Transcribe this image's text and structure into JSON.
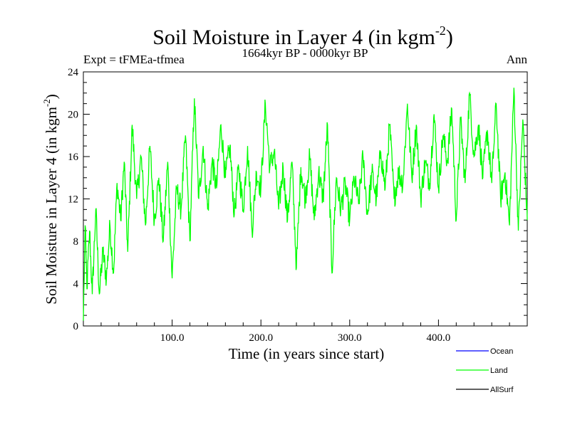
{
  "chart_data": {
    "type": "line",
    "title": "Soil Moisture in Layer 4 (in kgm",
    "title_sup": "-2",
    "title_close": ")",
    "subtitle": "1664kyr BP - 0000kyr BP",
    "expt_label": "Expt = tFMEa-tfmea",
    "season_label": "Ann",
    "xlabel": "Time (in years since start)",
    "ylabel": "Soil Moisture in Layer 4 (in kgm",
    "ylabel_sup": "-2",
    "ylabel_close": ")",
    "xlim": [
      0,
      500
    ],
    "ylim": [
      0,
      24
    ],
    "xticks": [
      100,
      200,
      300,
      400
    ],
    "xtick_labels": [
      "100.0",
      "200.0",
      "300.0",
      "400.0"
    ],
    "yticks": [
      0,
      4,
      8,
      12,
      16,
      20,
      24
    ],
    "ytick_labels": [
      "0",
      "4",
      "8",
      "12",
      "16",
      "20",
      "24"
    ],
    "legend": [
      {
        "name": "Ocean",
        "color": "#0000ff"
      },
      {
        "name": "Land",
        "color": "#00ff00"
      },
      {
        "name": "AllSurf",
        "color": "#000000"
      }
    ],
    "series": [
      {
        "name": "Land",
        "color": "#00ff00",
        "x": [
          0,
          2,
          4,
          7,
          10,
          14,
          18,
          22,
          26,
          30,
          34,
          38,
          42,
          46,
          50,
          55,
          60,
          65,
          70,
          75,
          80,
          85,
          90,
          95,
          100,
          105,
          110,
          115,
          120,
          125,
          130,
          135,
          140,
          145,
          150,
          155,
          160,
          165,
          170,
          175,
          180,
          185,
          190,
          195,
          200,
          205,
          210,
          215,
          220,
          225,
          230,
          235,
          240,
          245,
          250,
          255,
          260,
          265,
          270,
          275,
          280,
          285,
          290,
          295,
          300,
          305,
          310,
          315,
          320,
          325,
          330,
          335,
          340,
          345,
          350,
          355,
          360,
          365,
          370,
          375,
          380,
          385,
          390,
          395,
          400,
          405,
          410,
          415,
          420,
          425,
          430,
          435,
          440,
          445,
          450,
          455,
          460,
          465,
          470,
          475,
          480,
          485,
          490,
          495,
          500
        ],
        "values": [
          0.5,
          9.5,
          3.5,
          9.0,
          3.0,
          11.0,
          3.0,
          7.0,
          4.5,
          9.5,
          5.0,
          13.5,
          10.0,
          15.5,
          7.0,
          19.0,
          12.0,
          16.0,
          9.5,
          17.0,
          10.0,
          14.0,
          8.0,
          15.5,
          4.5,
          13.0,
          11.0,
          18.0,
          8.0,
          21.5,
          12.0,
          17.0,
          11.0,
          15.5,
          13.0,
          19.0,
          14.0,
          17.0,
          10.5,
          15.0,
          11.0,
          17.0,
          9.0,
          14.5,
          13.0,
          21.0,
          15.0,
          16.5,
          11.0,
          15.0,
          10.0,
          15.5,
          5.5,
          15.0,
          12.0,
          16.0,
          10.0,
          14.5,
          12.0,
          19.0,
          5.0,
          14.0,
          11.0,
          13.5,
          10.0,
          14.0,
          11.5,
          16.0,
          10.5,
          14.5,
          12.0,
          16.5,
          13.0,
          19.0,
          12.0,
          14.5,
          13.5,
          21.0,
          14.0,
          19.0,
          12.0,
          15.5,
          13.5,
          20.0,
          13.0,
          18.0,
          15.5,
          20.5,
          10.0,
          19.5,
          13.5,
          22.0,
          16.0,
          19.0,
          14.0,
          18.5,
          13.5,
          21.0,
          12.0,
          14.5,
          9.5,
          22.5,
          9.0,
          19.5,
          10.0
        ]
      }
    ]
  }
}
